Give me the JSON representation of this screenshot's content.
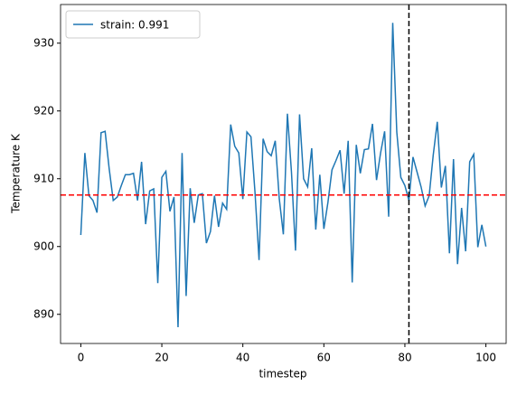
{
  "chart_data": {
    "type": "line",
    "xlabel": "timestep",
    "ylabel": "Temperature K",
    "x": [
      0,
      1,
      2,
      3,
      4,
      5,
      6,
      7,
      8,
      9,
      10,
      11,
      12,
      13,
      14,
      15,
      16,
      17,
      18,
      19,
      20,
      21,
      22,
      23,
      24,
      25,
      26,
      27,
      28,
      29,
      30,
      31,
      32,
      33,
      34,
      35,
      36,
      37,
      38,
      39,
      40,
      41,
      42,
      43,
      44,
      45,
      46,
      47,
      48,
      49,
      50,
      51,
      52,
      53,
      54,
      55,
      56,
      57,
      58,
      59,
      60,
      61,
      62,
      63,
      64,
      65,
      66,
      67,
      68,
      69,
      70,
      71,
      72,
      73,
      74,
      75,
      76,
      77,
      78,
      79,
      80,
      81,
      82,
      83,
      84,
      85,
      86,
      87,
      88,
      89,
      90,
      91,
      92,
      93,
      94,
      95,
      96,
      97,
      98,
      99,
      100
    ],
    "series": [
      {
        "name": "strain: 0.991",
        "color": "#1f77b4",
        "values": [
          901.7,
          913.8,
          907.5,
          906.8,
          905,
          916.8,
          917,
          911.5,
          906.8,
          907.3,
          909,
          910.6,
          910.6,
          910.8,
          906.8,
          912.5,
          903.3,
          908.2,
          908.5,
          894.6,
          910.2,
          911.1,
          905.2,
          907.3,
          888.1,
          913.8,
          892.7,
          908.6,
          903.5,
          907.6,
          907.8,
          900.5,
          902.2,
          907.5,
          902.9,
          906.4,
          905.5,
          918,
          914.8,
          913.8,
          907,
          916.9,
          916.2,
          908,
          898,
          915.9,
          914,
          913.4,
          915.6,
          907,
          901.8,
          919.6,
          911,
          899.4,
          919.5,
          910,
          908.8,
          914.5,
          902.5,
          910.6,
          902.6,
          906.5,
          911.3,
          912.7,
          914.2,
          907.8,
          915.6,
          894.7,
          915,
          910.8,
          914.3,
          914.4,
          918.1,
          909.8,
          913.8,
          917,
          904.4,
          933,
          916.9,
          910.2,
          909,
          906.8,
          913.2,
          911,
          908.8,
          906,
          907.5,
          913.5,
          918.4,
          908.7,
          911.9,
          899,
          912.9,
          897.4,
          905.7,
          899.3,
          912.5,
          913.6,
          899.9,
          903.2,
          900
        ]
      }
    ],
    "hline": {
      "value": 907.6,
      "color": "#ff0000"
    },
    "vline": {
      "value": 81,
      "color": "#000000"
    },
    "xlim": [
      -5,
      105
    ],
    "ylim": [
      885.7,
      935.7
    ],
    "xticks": [
      0,
      20,
      40,
      60,
      80,
      100
    ],
    "yticks": [
      890,
      900,
      910,
      920,
      930
    ],
    "legend": "upper left"
  }
}
